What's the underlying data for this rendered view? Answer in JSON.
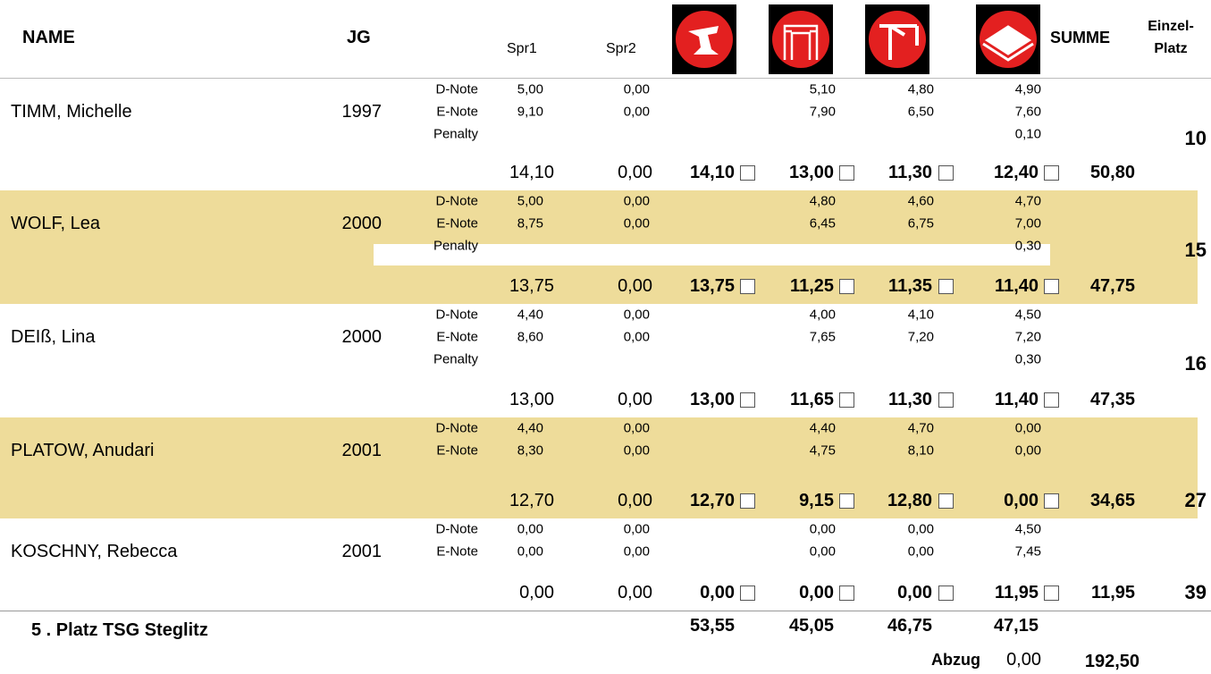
{
  "header": {
    "name": "NAME",
    "jg": "JG",
    "spr1": "Spr1",
    "spr2": "Spr2",
    "summe": "SUMME",
    "place": [
      "Einzel-",
      "Platz"
    ]
  },
  "rows": [
    {
      "name": "TIMM, Michelle",
      "year": "1997",
      "lines": [
        {
          "label": "D-Note",
          "spr1": "5,00",
          "spr2": "0,00",
          "bars": "5,10",
          "beam": "4,80",
          "floor": "4,90"
        },
        {
          "label": "E-Note",
          "spr1": "9,10",
          "spr2": "0,00",
          "bars": "7,90",
          "beam": "6,50",
          "floor": "7,60"
        },
        {
          "label": "Penalty",
          "floor": "0,10"
        }
      ],
      "totals": {
        "spr1": "14,10",
        "spr2": "0,00",
        "vault": "14,10",
        "bars": "13,00",
        "beam": "11,30",
        "floor": "12,40",
        "summe": "50,80"
      },
      "place": "10"
    },
    {
      "name": "WOLF, Lea",
      "year": "2000",
      "lines": [
        {
          "label": "D-Note",
          "spr1": "5,00",
          "spr2": "0,00",
          "bars": "4,80",
          "beam": "4,60",
          "floor": "4,70"
        },
        {
          "label": "E-Note",
          "spr1": "8,75",
          "spr2": "0,00",
          "bars": "6,45",
          "beam": "6,75",
          "floor": "7,00"
        },
        {
          "label": "Penalty",
          "floor": "0,30"
        }
      ],
      "totals": {
        "spr1": "13,75",
        "spr2": "0,00",
        "vault": "13,75",
        "bars": "11,25",
        "beam": "11,35",
        "floor": "11,40",
        "summe": "47,75"
      },
      "place": "15"
    },
    {
      "name": "DEIß, Lina",
      "year": "2000",
      "lines": [
        {
          "label": "D-Note",
          "spr1": "4,40",
          "spr2": "0,00",
          "bars": "4,00",
          "beam": "4,10",
          "floor": "4,50"
        },
        {
          "label": "E-Note",
          "spr1": "8,60",
          "spr2": "0,00",
          "bars": "7,65",
          "beam": "7,20",
          "floor": "7,20"
        },
        {
          "label": "Penalty",
          "floor": "0,30"
        }
      ],
      "totals": {
        "spr1": "13,00",
        "spr2": "0,00",
        "vault": "13,00",
        "bars": "11,65",
        "beam": "11,30",
        "floor": "11,40",
        "summe": "47,35"
      },
      "place": "16"
    },
    {
      "name": "PLATOW, Anudari",
      "year": "2001",
      "lines": [
        {
          "label": "D-Note",
          "spr1": "4,40",
          "spr2": "0,00",
          "bars": "4,40",
          "beam": "4,70",
          "floor": "0,00"
        },
        {
          "label": "E-Note",
          "spr1": "8,30",
          "spr2": "0,00",
          "bars": "4,75",
          "beam": "8,10",
          "floor": "0,00"
        }
      ],
      "totals": {
        "spr1": "12,70",
        "spr2": "0,00",
        "vault": "12,70",
        "bars": "9,15",
        "beam": "12,80",
        "floor": "0,00",
        "summe": "34,65"
      },
      "place": "27"
    },
    {
      "name": "KOSCHNY, Rebecca",
      "year": "2001",
      "lines": [
        {
          "label": "D-Note",
          "spr1": "0,00",
          "spr2": "0,00",
          "bars": "0,00",
          "beam": "0,00",
          "floor": "4,50"
        },
        {
          "label": "E-Note",
          "spr1": "0,00",
          "spr2": "0,00",
          "bars": "0,00",
          "beam": "0,00",
          "floor": "7,45"
        }
      ],
      "totals": {
        "spr1": "0,00",
        "spr2": "0,00",
        "vault": "0,00",
        "bars": "0,00",
        "beam": "0,00",
        "floor": "11,95",
        "summe": "11,95"
      },
      "place": "39"
    }
  ],
  "footer": {
    "team": "5 . Platz  TSG Steglitz",
    "vault": "53,55",
    "bars": "45,05",
    "beam": "46,75",
    "floor": "47,15",
    "deduction_label": "Abzug",
    "deduction": "0,00",
    "total": "192,50"
  }
}
